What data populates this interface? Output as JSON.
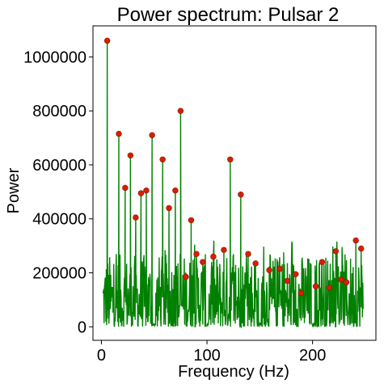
{
  "chart_data": {
    "type": "line",
    "title": "Power spectrum: Pulsar 2",
    "xlabel": "Frequency (Hz)",
    "ylabel": "Power",
    "xlim": [
      -8,
      260
    ],
    "ylim": [
      -50000,
      1115000
    ],
    "xticks": [
      0,
      100,
      200
    ],
    "xtick_labels": [
      "0",
      "100",
      "200"
    ],
    "yticks": [
      0,
      200000,
      400000,
      600000,
      800000,
      1000000
    ],
    "ytick_labels": [
      "0",
      "200000",
      "400000",
      "600000",
      "800000",
      "1000000"
    ],
    "grid": false,
    "line_color": "#008000",
    "marker_color": "#d62000",
    "noise_level": 270000,
    "gap_frequencies": [
      50,
      100,
      150,
      200
    ],
    "peaks": {
      "x": [
        5.5,
        16.5,
        22.5,
        27.5,
        32.5,
        37.5,
        42.5,
        48,
        58,
        64,
        70,
        75,
        80,
        85,
        90,
        96,
        106,
        116,
        122,
        132,
        139,
        146,
        159,
        169,
        176,
        184,
        189,
        203,
        209,
        216,
        222,
        227,
        232,
        241,
        246
      ],
      "y": [
        1060000,
        715000,
        515000,
        635000,
        405000,
        495000,
        505000,
        710000,
        620000,
        440000,
        505000,
        800000,
        185000,
        395000,
        270000,
        240000,
        260000,
        285000,
        620000,
        490000,
        270000,
        235000,
        210000,
        215000,
        170000,
        195000,
        125000,
        150000,
        240000,
        145000,
        280000,
        175000,
        165000,
        320000,
        290000
      ]
    }
  }
}
